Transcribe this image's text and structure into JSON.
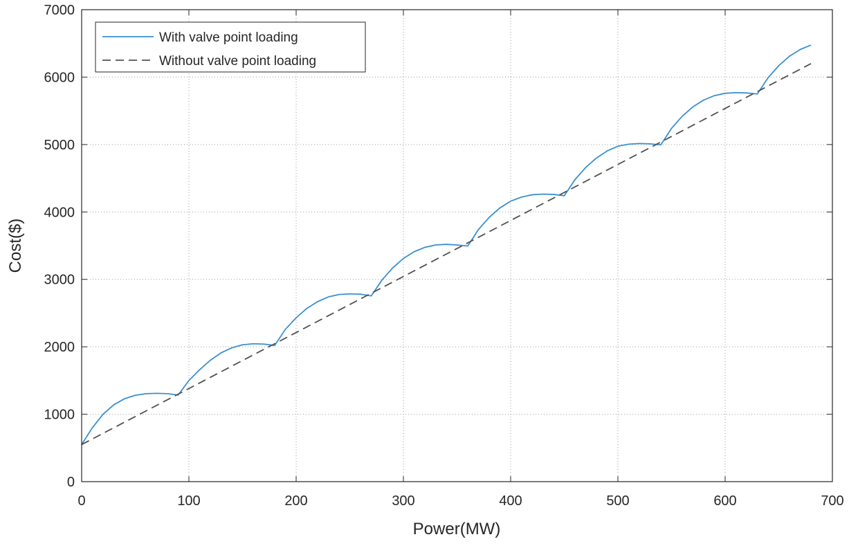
{
  "chart_data": {
    "type": "line",
    "title": "",
    "xlabel": "Power(MW)",
    "ylabel": "Cost($)",
    "xlim": [
      0,
      700
    ],
    "ylim": [
      0,
      7000
    ],
    "xticks": [
      "0",
      "100",
      "200",
      "300",
      "400",
      "500",
      "600",
      "700"
    ],
    "yticks": [
      "0",
      "1000",
      "2000",
      "3000",
      "4000",
      "5000",
      "6000",
      "7000"
    ],
    "grid": true,
    "legend_position": "top-left",
    "series": [
      {
        "name": "With valve point loading",
        "color": "#3a8fcf",
        "style": "solid",
        "x": [
          0,
          10,
          20,
          30,
          40,
          50,
          60,
          70,
          80,
          90,
          100,
          110,
          120,
          130,
          140,
          150,
          160,
          170,
          180,
          190,
          200,
          210,
          220,
          230,
          240,
          250,
          260,
          270,
          280,
          290,
          300,
          310,
          320,
          330,
          340,
          350,
          360,
          370,
          380,
          390,
          400,
          410,
          420,
          430,
          440,
          450,
          460,
          470,
          480,
          490,
          500,
          510,
          520,
          530,
          540,
          550,
          560,
          570,
          580,
          590,
          600,
          610,
          620,
          630,
          640,
          650,
          660,
          670,
          680
        ],
        "y": [
          550,
          800,
          1000,
          1140,
          1230,
          1280,
          1305,
          1310,
          1305,
          1285,
          1500,
          1660,
          1800,
          1910,
          1985,
          2030,
          2045,
          2040,
          2020,
          2260,
          2430,
          2570,
          2670,
          2740,
          2775,
          2785,
          2780,
          2755,
          2990,
          3170,
          3310,
          3410,
          3475,
          3510,
          3520,
          3510,
          3495,
          3740,
          3920,
          4060,
          4160,
          4220,
          4255,
          4265,
          4260,
          4240,
          4480,
          4660,
          4800,
          4905,
          4975,
          5005,
          5015,
          5010,
          4995,
          5240,
          5420,
          5560,
          5660,
          5725,
          5760,
          5770,
          5765,
          5750,
          5990,
          6170,
          6310,
          6410,
          6475
        ]
      },
      {
        "name": "Without valve point loading",
        "color": "#505050",
        "style": "dashed",
        "x": [
          0,
          680
        ],
        "y": [
          550,
          6200
        ]
      }
    ]
  }
}
